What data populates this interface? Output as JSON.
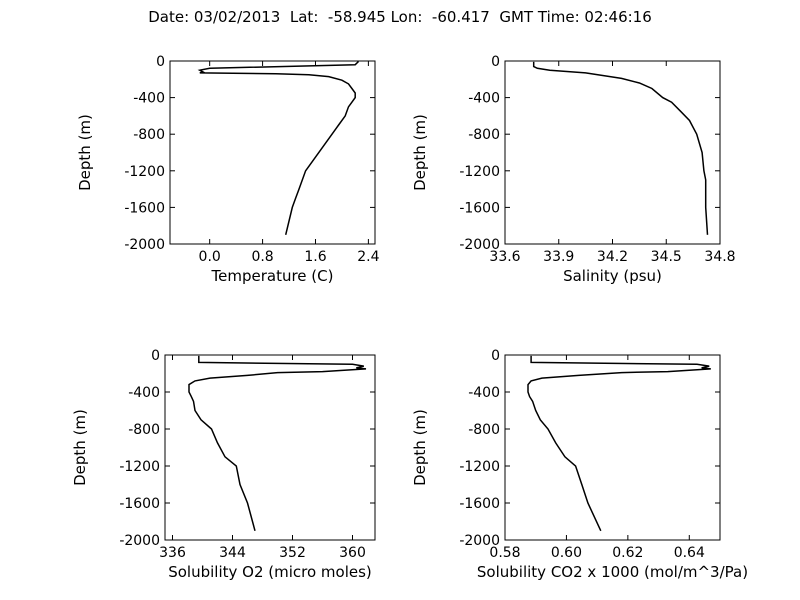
{
  "title": "Date: 03/02/2013  Lat:  -58.945 Lon:  -60.417  GMT Time: 02:46:16",
  "chart_data": [
    {
      "type": "line",
      "xlabel": "Temperature (C)",
      "ylabel": "Depth (m)",
      "xlim": [
        -0.6,
        2.5
      ],
      "ylim": [
        -2000,
        0
      ],
      "xticks": [
        "0.0",
        "0.8",
        "1.6",
        "2.4"
      ],
      "yticks": [
        "0",
        "-400",
        "-800",
        "-1200",
        "-1600",
        "-2000"
      ],
      "x": [
        2.25,
        2.2,
        0.0,
        -0.15,
        -0.1,
        -0.15,
        1.0,
        1.5,
        1.8,
        2.0,
        2.1,
        2.15,
        2.2,
        2.2,
        2.15,
        2.1,
        2.05,
        1.95,
        1.85,
        1.7,
        1.55,
        1.45,
        1.35,
        1.3,
        1.25,
        1.15
      ],
      "y": [
        -5,
        -40,
        -80,
        -100,
        -120,
        -130,
        -140,
        -150,
        -170,
        -210,
        -250,
        -300,
        -350,
        -400,
        -450,
        -500,
        -600,
        -700,
        -800,
        -950,
        -1100,
        -1200,
        -1400,
        -1500,
        -1600,
        -1900
      ]
    },
    {
      "type": "line",
      "xlabel": "Salinity (psu)",
      "ylabel": "Depth (m)",
      "xlim": [
        33.6,
        34.8
      ],
      "ylim": [
        -2000,
        0
      ],
      "xticks": [
        "33.6",
        "33.9",
        "34.2",
        "34.5",
        "34.8"
      ],
      "yticks": [
        "0",
        "-400",
        "-800",
        "-1200",
        "-1600",
        "-2000"
      ],
      "x": [
        33.76,
        33.76,
        33.78,
        33.85,
        34.05,
        34.25,
        34.35,
        34.42,
        34.48,
        34.53,
        34.58,
        34.63,
        34.67,
        34.7,
        34.71,
        34.72,
        34.72,
        34.72,
        34.73
      ],
      "y": [
        -10,
        -60,
        -80,
        -100,
        -130,
        -190,
        -240,
        -300,
        -400,
        -450,
        -550,
        -650,
        -800,
        -1000,
        -1200,
        -1300,
        -1500,
        -1600,
        -1900
      ]
    },
    {
      "type": "line",
      "xlabel": "Solubility O2 (micro moles)",
      "ylabel": "Depth (m)",
      "xlim": [
        335,
        363
      ],
      "ylim": [
        -2000,
        0
      ],
      "xticks": [
        "336",
        "344",
        "352",
        "360"
      ],
      "yticks": [
        "0",
        "-400",
        "-800",
        "-1200",
        "-1600",
        "-2000"
      ],
      "x": [
        339.5,
        339.5,
        360.0,
        361.5,
        360.5,
        361.8,
        356.0,
        350.0,
        346.0,
        341.0,
        339.0,
        338.2,
        338.2,
        338.5,
        338.8,
        339.0,
        339.8,
        341.2,
        342.0,
        343.0,
        344.5,
        345.0,
        346.0,
        347.0
      ],
      "y": [
        -10,
        -80,
        -100,
        -120,
        -140,
        -150,
        -180,
        -190,
        -220,
        -250,
        -280,
        -320,
        -400,
        -450,
        -500,
        -600,
        -700,
        -800,
        -950,
        -1100,
        -1200,
        -1400,
        -1600,
        -1900
      ]
    },
    {
      "type": "line",
      "xlabel": "Solubility CO2 x 1000 (mol/m^3/Pa)",
      "ylabel": "Depth (m)",
      "xlim": [
        0.58,
        0.65
      ],
      "ylim": [
        -2000,
        0
      ],
      "xticks": [
        "0.58",
        "0.60",
        "0.62",
        "0.64"
      ],
      "yticks": [
        "0",
        "-400",
        "-800",
        "-1200",
        "-1600",
        "-2000"
      ],
      "x": [
        0.5885,
        0.5885,
        0.6425,
        0.6465,
        0.644,
        0.647,
        0.633,
        0.618,
        0.604,
        0.592,
        0.5885,
        0.5875,
        0.5875,
        0.588,
        0.589,
        0.59,
        0.5915,
        0.594,
        0.5965,
        0.5995,
        0.603,
        0.605,
        0.607,
        0.6112
      ],
      "y": [
        -10,
        -80,
        -100,
        -120,
        -140,
        -150,
        -180,
        -190,
        -220,
        -250,
        -280,
        -320,
        -400,
        -450,
        -500,
        -600,
        -700,
        -800,
        -950,
        -1100,
        -1200,
        -1400,
        -1600,
        -1900
      ]
    }
  ]
}
